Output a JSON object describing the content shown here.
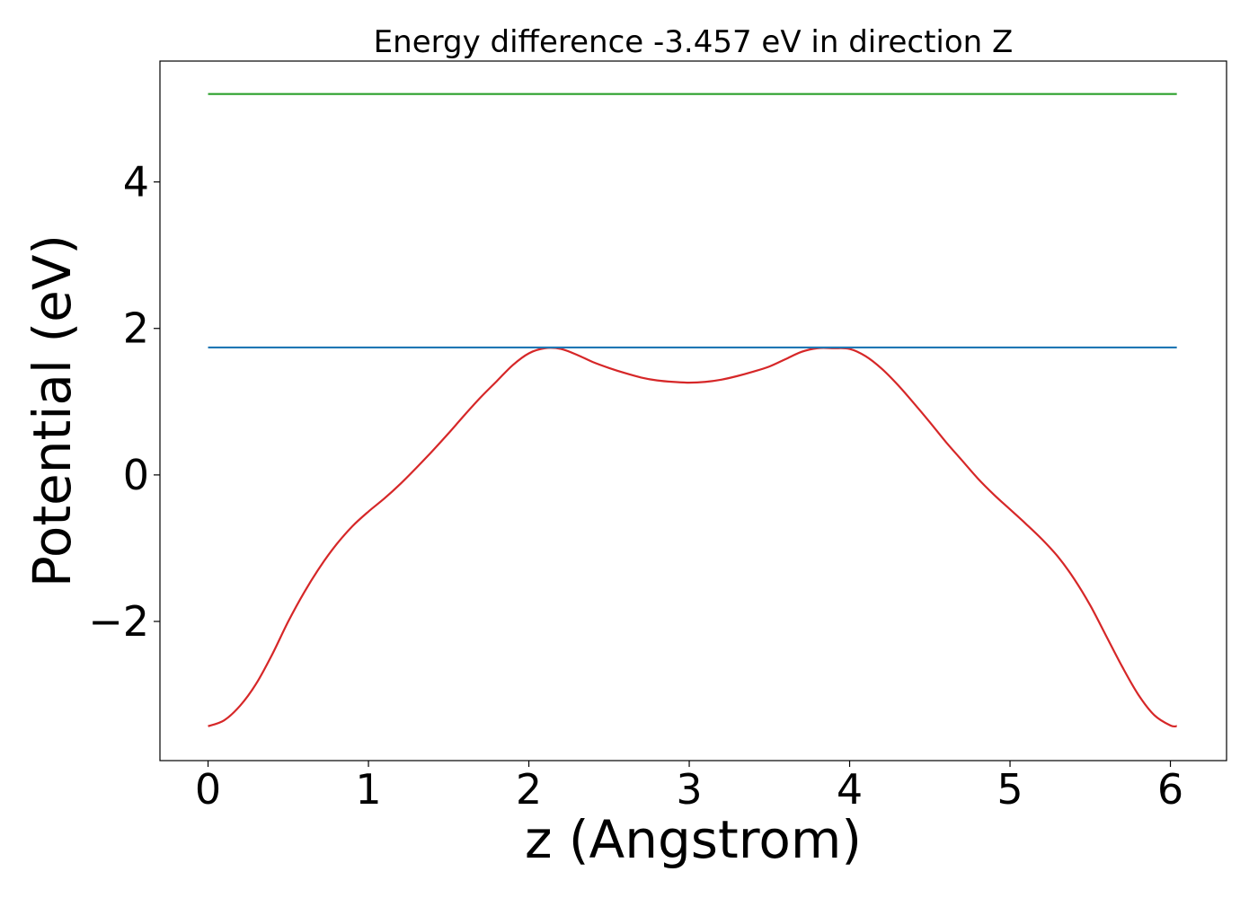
{
  "chart_data": {
    "type": "line",
    "title": "Energy difference -3.457 eV in direction Z",
    "xlabel": "z (Angstrom)",
    "ylabel": "Potential (eV)",
    "xlim": [
      -0.3,
      6.35
    ],
    "ylim": [
      -3.9,
      5.65
    ],
    "xticks": [
      0,
      1,
      2,
      3,
      4,
      5,
      6
    ],
    "xtick_labels": [
      "0",
      "1",
      "2",
      "3",
      "4",
      "5",
      "6"
    ],
    "yticks": [
      -2,
      0,
      2,
      4
    ],
    "ytick_labels": [
      "−2",
      "0",
      "2",
      "4"
    ],
    "grid": false,
    "series": [
      {
        "color": "#d62728",
        "x": [
          0.0,
          0.1,
          0.2,
          0.3,
          0.4,
          0.5,
          0.6,
          0.7,
          0.8,
          0.9,
          1.0,
          1.1,
          1.2,
          1.3,
          1.4,
          1.5,
          1.6,
          1.7,
          1.8,
          1.9,
          2.0,
          2.1,
          2.2,
          2.3,
          2.4,
          2.5,
          2.6,
          2.7,
          2.8,
          2.9,
          3.0,
          3.1,
          3.2,
          3.3,
          3.4,
          3.5,
          3.6,
          3.7,
          3.8,
          3.9,
          4.0,
          4.1,
          4.2,
          4.3,
          4.4,
          4.5,
          4.6,
          4.7,
          4.8,
          4.9,
          5.0,
          5.1,
          5.2,
          5.3,
          5.4,
          5.5,
          5.6,
          5.7,
          5.8,
          5.9,
          6.0,
          6.04
        ],
        "y": [
          -3.43,
          -3.35,
          -3.15,
          -2.85,
          -2.45,
          -2.0,
          -1.6,
          -1.25,
          -0.95,
          -0.7,
          -0.5,
          -0.32,
          -0.12,
          0.1,
          0.33,
          0.57,
          0.82,
          1.06,
          1.28,
          1.5,
          1.66,
          1.73,
          1.72,
          1.64,
          1.54,
          1.46,
          1.39,
          1.33,
          1.29,
          1.27,
          1.26,
          1.27,
          1.3,
          1.35,
          1.41,
          1.48,
          1.58,
          1.68,
          1.73,
          1.73,
          1.72,
          1.62,
          1.45,
          1.23,
          0.98,
          0.72,
          0.45,
          0.2,
          -0.05,
          -0.27,
          -0.47,
          -0.67,
          -0.88,
          -1.12,
          -1.42,
          -1.78,
          -2.2,
          -2.62,
          -3.0,
          -3.28,
          -3.42,
          -3.43
        ]
      },
      {
        "color": "#1f77b4",
        "x": [
          0.0,
          6.04
        ],
        "y": [
          1.74,
          1.74
        ]
      },
      {
        "color": "#2ca02c",
        "x": [
          0.0,
          6.04
        ],
        "y": [
          5.2,
          5.2
        ]
      }
    ]
  }
}
